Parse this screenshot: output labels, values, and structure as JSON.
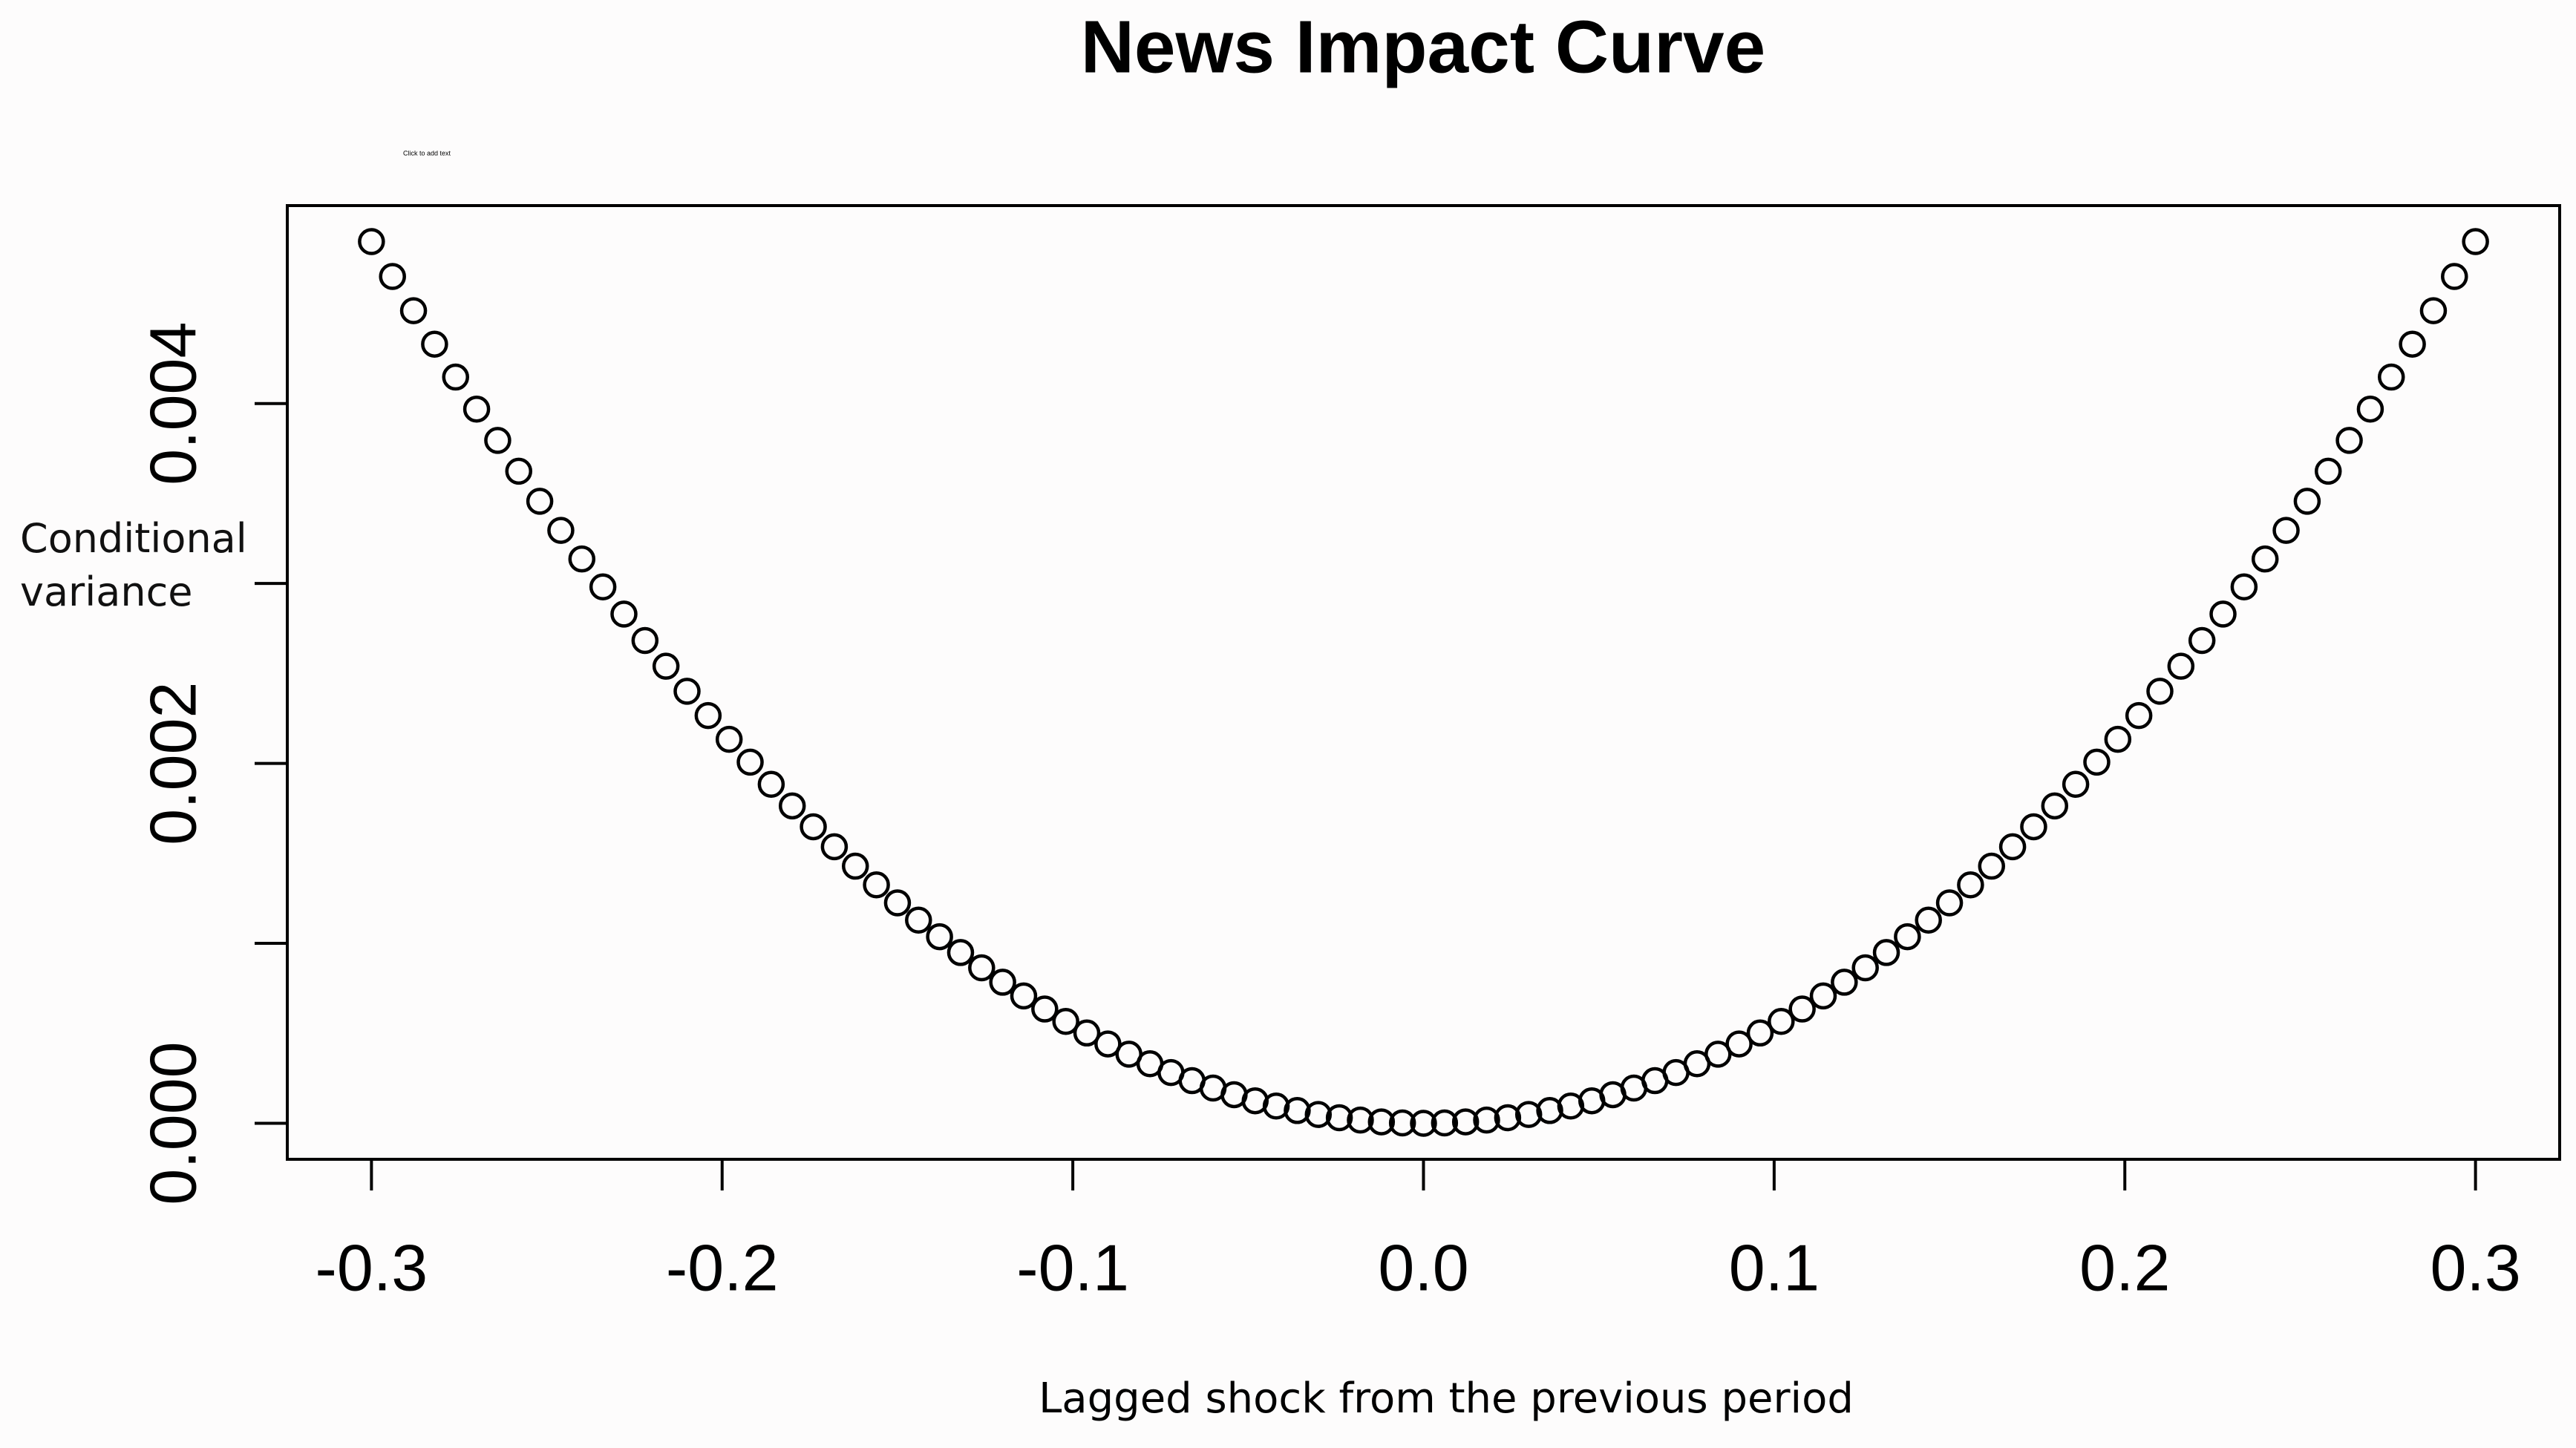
{
  "chart_data": {
    "type": "scatter",
    "title": "News Impact Curve",
    "annotation": "Click to add text",
    "xlabel": "Lagged shock from the previous period",
    "ylabel": "Conditional variance",
    "color": "#000000",
    "x": [
      -0.3,
      -0.294,
      -0.288,
      -0.282,
      -0.276,
      -0.27,
      -0.264,
      -0.258,
      -0.252,
      -0.246,
      -0.24,
      -0.234,
      -0.228,
      -0.222,
      -0.216,
      -0.21,
      -0.204,
      -0.198,
      -0.192,
      -0.186,
      -0.18,
      -0.174,
      -0.168,
      -0.162,
      -0.156,
      -0.15,
      -0.144,
      -0.138,
      -0.132,
      -0.126,
      -0.12,
      -0.114,
      -0.108,
      -0.102,
      -0.096,
      -0.09,
      -0.084,
      -0.078,
      -0.072,
      -0.066,
      -0.06,
      -0.054,
      -0.048,
      -0.042,
      -0.036,
      -0.03,
      -0.024,
      -0.018,
      -0.012,
      -0.006,
      0,
      0.006,
      0.012,
      0.018,
      0.024,
      0.03,
      0.036,
      0.042,
      0.048,
      0.054,
      0.06,
      0.066,
      0.072,
      0.078,
      0.084,
      0.09,
      0.096,
      0.102,
      0.108,
      0.114,
      0.12,
      0.126,
      0.132,
      0.138,
      0.144,
      0.15,
      0.156,
      0.162,
      0.168,
      0.174,
      0.18,
      0.186,
      0.192,
      0.198,
      0.204,
      0.21,
      0.216,
      0.222,
      0.228,
      0.234,
      0.24,
      0.246,
      0.252,
      0.258,
      0.264,
      0.27,
      0.276,
      0.282,
      0.288,
      0.294,
      0.3
    ],
    "values": [
      0.0049,
      0.004706,
      0.004516,
      0.00433,
      0.004147,
      0.003969,
      0.003795,
      0.003624,
      0.003457,
      0.003295,
      0.003136,
      0.002981,
      0.00283,
      0.002683,
      0.00254,
      0.002401,
      0.002266,
      0.002134,
      0.002007,
      0.001884,
      0.001764,
      0.001648,
      0.001537,
      0.001429,
      0.001325,
      0.001225,
      0.001129,
      0.001037,
      0.000949,
      0.000864,
      0.000784,
      0.000708,
      0.000635,
      0.000566,
      0.000502,
      0.000441,
      0.000384,
      0.000331,
      0.000282,
      0.000237,
      0.000196,
      0.000159,
      0.000125,
      9.6e-05,
      7.1e-05,
      4.9e-05,
      3.1e-05,
      1.8e-05,
      8e-06,
      2e-06,
      0,
      2e-06,
      8e-06,
      1.8e-05,
      3.1e-05,
      4.9e-05,
      7.1e-05,
      9.6e-05,
      0.000125,
      0.000159,
      0.000196,
      0.000237,
      0.000282,
      0.000331,
      0.000384,
      0.000441,
      0.000502,
      0.000566,
      0.000635,
      0.000708,
      0.000784,
      0.000864,
      0.000949,
      0.001037,
      0.001129,
      0.001225,
      0.001325,
      0.001429,
      0.001537,
      0.001648,
      0.001764,
      0.001884,
      0.002007,
      0.002134,
      0.002266,
      0.002401,
      0.00254,
      0.002683,
      0.00283,
      0.002981,
      0.003136,
      0.003295,
      0.003457,
      0.003624,
      0.003795,
      0.003969,
      0.004147,
      0.00433,
      0.004516,
      0.004706,
      0.0049
    ],
    "xlim": [
      -0.324,
      0.324
    ],
    "ylim": [
      -0.0002,
      0.0051
    ],
    "xticks": [
      -0.3,
      -0.2,
      -0.1,
      {
        "value": 0,
        "label": "0.0"
      },
      0.1,
      0.2,
      0.3
    ],
    "yticks": [
      {
        "value": 0,
        "label": "0.000"
      },
      {
        "value": 0.001,
        "label": null
      },
      {
        "value": 0.002,
        "label": "0.002"
      },
      {
        "value": 0.003,
        "label": null
      },
      {
        "value": 0.004,
        "label": "0.004"
      }
    ],
    "grid": false
  }
}
